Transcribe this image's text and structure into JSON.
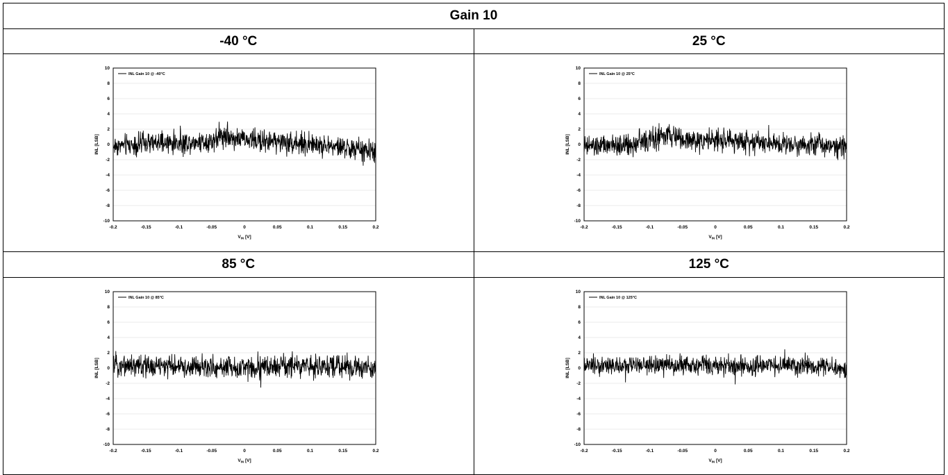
{
  "table": {
    "title": "Gain 10",
    "temps": [
      "-40 °C",
      "25 °C",
      "85 °C",
      "125 °C"
    ]
  },
  "chart_data": [
    {
      "type": "line",
      "legend": "INL Gain 10 @ -40°C",
      "xlabel": "VIN [V]",
      "ylabel": "INL [LSB]",
      "xlim": [
        -0.2,
        0.2
      ],
      "ylim": [
        -10,
        10
      ],
      "xticks": [
        "-0.2",
        "-0.15",
        "-0.1",
        "-0.05",
        "0",
        "0.05",
        "0.1",
        "0.15",
        "0.2"
      ],
      "yticks": [
        "10",
        "8",
        "6",
        "4",
        "2",
        "0",
        "-2",
        "-4",
        "-6",
        "-8",
        "-10"
      ],
      "legend_position": "top-left",
      "series": [
        {
          "name": "INL Gain 10 @ -40°C",
          "x": [
            -0.2,
            -0.15,
            -0.1,
            -0.05,
            -0.035,
            0,
            0.05,
            0.1,
            0.15,
            0.2
          ],
          "values": [
            -0.2,
            0.1,
            0.2,
            0.5,
            1.2,
            0.6,
            0.4,
            0.0,
            -0.4,
            -1.0
          ],
          "noise": 0.7
        }
      ],
      "line_color": "#000000",
      "grid": true
    },
    {
      "type": "line",
      "legend": "INL Gain 10 @ 25°C",
      "xlabel": "VIN [V]",
      "ylabel": "INL [LSB]",
      "xlim": [
        -0.2,
        0.2
      ],
      "ylim": [
        -10,
        10
      ],
      "xticks": [
        "-0.2",
        "-0.15",
        "-0.1",
        "-0.05",
        "0",
        "0.05",
        "0.1",
        "0.15",
        "0.2"
      ],
      "yticks": [
        "10",
        "8",
        "6",
        "4",
        "2",
        "0",
        "-2",
        "-4",
        "-6",
        "-8",
        "-10"
      ],
      "legend_position": "top-left",
      "series": [
        {
          "name": "INL Gain 10 @ 25°C",
          "x": [
            -0.2,
            -0.15,
            -0.1,
            -0.07,
            -0.05,
            0,
            0.05,
            0.1,
            0.15,
            0.2
          ],
          "values": [
            -0.3,
            -0.2,
            0.5,
            1.2,
            0.6,
            0.5,
            0.4,
            0.2,
            0.0,
            -0.1
          ],
          "noise": 0.7
        }
      ],
      "line_color": "#000000",
      "grid": true
    },
    {
      "type": "line",
      "legend": "INL Gain 10 @ 85°C",
      "xlabel": "VIN [V]",
      "ylabel": "INL [LSB]",
      "xlim": [
        -0.2,
        0.2
      ],
      "ylim": [
        -10,
        10
      ],
      "xticks": [
        "-0.2",
        "-0.15",
        "-0.1",
        "-0.05",
        "0",
        "0.05",
        "0.1",
        "0.15",
        "0.2"
      ],
      "yticks": [
        "10",
        "8",
        "6",
        "4",
        "2",
        "0",
        "-2",
        "-4",
        "-6",
        "-8",
        "-10"
      ],
      "legend_position": "top-left",
      "series": [
        {
          "name": "INL Gain 10 @ 85°C",
          "x": [
            -0.2,
            -0.15,
            -0.1,
            -0.05,
            0,
            0.05,
            0.1,
            0.15,
            0.2
          ],
          "values": [
            0.5,
            0.3,
            0.2,
            0.1,
            0.1,
            0.2,
            0.3,
            0.2,
            -0.1
          ],
          "noise": 0.7
        }
      ],
      "line_color": "#000000",
      "grid": true
    },
    {
      "type": "line",
      "legend": "INL Gain 10 @ 125°C",
      "xlabel": "VIN [V]",
      "ylabel": "INL [LSB]",
      "xlim": [
        -0.2,
        0.2
      ],
      "ylim": [
        -10,
        10
      ],
      "xticks": [
        "-0.2",
        "-0.15",
        "-0.1",
        "-0.05",
        "0",
        "0.05",
        "0.1",
        "0.15",
        "0.2"
      ],
      "yticks": [
        "10",
        "8",
        "6",
        "4",
        "2",
        "0",
        "-2",
        "-4",
        "-6",
        "-8",
        "-10"
      ],
      "legend_position": "top-left",
      "series": [
        {
          "name": "INL Gain 10 @ 125°C",
          "x": [
            -0.2,
            -0.15,
            -0.1,
            -0.05,
            0,
            0.05,
            0.1,
            0.15,
            0.2
          ],
          "values": [
            0.3,
            0.3,
            0.3,
            0.4,
            0.3,
            0.2,
            0.3,
            0.3,
            -0.3
          ],
          "noise": 0.6
        }
      ],
      "line_color": "#000000",
      "grid": true
    }
  ]
}
